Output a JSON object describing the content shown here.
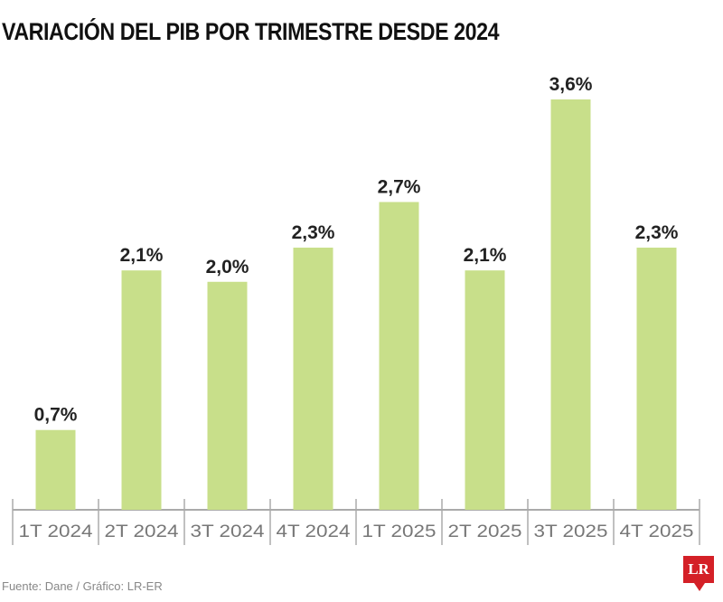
{
  "chart_data": {
    "type": "bar",
    "title": "VARIACIÓN DEL PIB POR TRIMESTRE DESDE 2024",
    "categories": [
      "1T 2024",
      "2T 2024",
      "3T 2024",
      "4T 2024",
      "1T 2025",
      "2T 2025",
      "3T 2025",
      "4T 2025"
    ],
    "values": [
      0.7,
      2.1,
      2.0,
      2.3,
      2.7,
      2.1,
      3.6,
      2.3
    ],
    "data_labels": [
      "0,7%",
      "2,1%",
      "2,0%",
      "2,3%",
      "2,7%",
      "2,1%",
      "3,6%",
      "2,3%"
    ],
    "xlabel": "",
    "ylabel": "",
    "ylim": [
      0,
      3.6
    ],
    "grid": false,
    "bar_color": "#c8df8a",
    "axis_color": "#aaaaaa"
  },
  "source": "Fuente: Dane / Gráfico: LR-ER",
  "logo": "LR"
}
